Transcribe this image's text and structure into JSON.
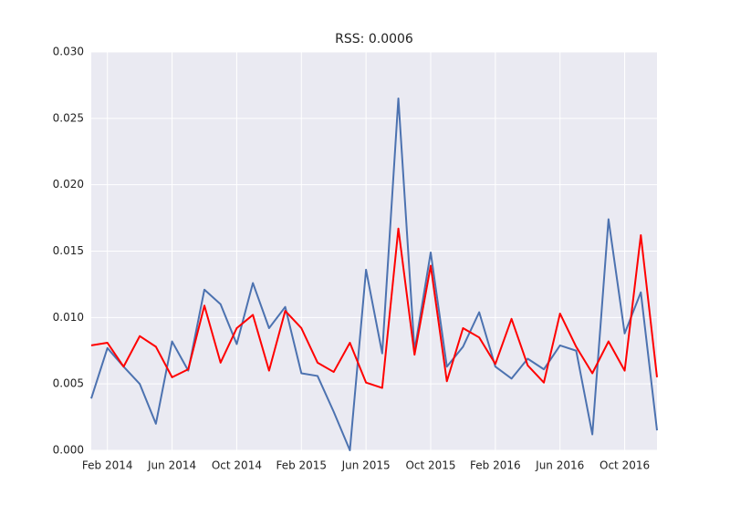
{
  "chart_data": {
    "type": "line",
    "title": "RSS: 0.0006",
    "x": [
      "2014-01",
      "2014-02",
      "2014-03",
      "2014-04",
      "2014-05",
      "2014-06",
      "2014-07",
      "2014-08",
      "2014-09",
      "2014-10",
      "2014-11",
      "2014-12",
      "2015-01",
      "2015-02",
      "2015-03",
      "2015-04",
      "2015-05",
      "2015-06",
      "2015-07",
      "2015-08",
      "2015-09",
      "2015-10",
      "2015-11",
      "2015-12",
      "2016-01",
      "2016-02",
      "2016-03",
      "2016-04",
      "2016-05",
      "2016-06",
      "2016-07",
      "2016-08",
      "2016-09",
      "2016-10",
      "2016-11",
      "2016-12"
    ],
    "series": [
      {
        "color": "#4c72b0",
        "values": [
          0.0039,
          0.0077,
          0.0063,
          0.005,
          0.002,
          0.0082,
          0.006,
          0.0121,
          0.011,
          0.008,
          0.0126,
          0.0092,
          0.0108,
          0.0058,
          0.0056,
          0.0029,
          0.0,
          0.0136,
          0.0073,
          0.0265,
          0.0075,
          0.0149,
          0.0063,
          0.0078,
          0.0104,
          0.0063,
          0.0054,
          0.0069,
          0.0061,
          0.0079,
          0.0075,
          0.0012,
          0.0174,
          0.0088,
          0.0119,
          0.0015
        ]
      },
      {
        "color": "#ff0000",
        "values": [
          0.0079,
          0.0081,
          0.0063,
          0.0086,
          0.0078,
          0.0055,
          0.0061,
          0.0109,
          0.0066,
          0.0092,
          0.0102,
          0.006,
          0.0105,
          0.0092,
          0.0066,
          0.0059,
          0.0081,
          0.0051,
          0.0047,
          0.0167,
          0.0072,
          0.0139,
          0.0052,
          0.0092,
          0.0085,
          0.0065,
          0.0099,
          0.0064,
          0.0051,
          0.0103,
          0.0078,
          0.0058,
          0.0082,
          0.006,
          0.0162,
          0.0055
        ]
      }
    ],
    "xlim": [
      "2014-01",
      "2016-12"
    ],
    "xticks": [
      {
        "value": "2014-02",
        "label": "Feb 2014"
      },
      {
        "value": "2014-06",
        "label": "Jun 2014"
      },
      {
        "value": "2014-10",
        "label": "Oct 2014"
      },
      {
        "value": "2015-02",
        "label": "Feb 2015"
      },
      {
        "value": "2015-06",
        "label": "Jun 2015"
      },
      {
        "value": "2015-10",
        "label": "Oct 2015"
      },
      {
        "value": "2016-02",
        "label": "Feb 2016"
      },
      {
        "value": "2016-06",
        "label": "Jun 2016"
      },
      {
        "value": "2016-10",
        "label": "Oct 2016"
      }
    ],
    "ylim": [
      0,
      0.03
    ],
    "yticks": [
      {
        "value": 0,
        "label": "0.000"
      },
      {
        "value": 0.005,
        "label": "0.005"
      },
      {
        "value": 0.01,
        "label": "0.010"
      },
      {
        "value": 0.015,
        "label": "0.015"
      },
      {
        "value": 0.02,
        "label": "0.020"
      },
      {
        "value": 0.025,
        "label": "0.025"
      },
      {
        "value": 0.03,
        "label": "0.030"
      }
    ],
    "grid": true
  }
}
